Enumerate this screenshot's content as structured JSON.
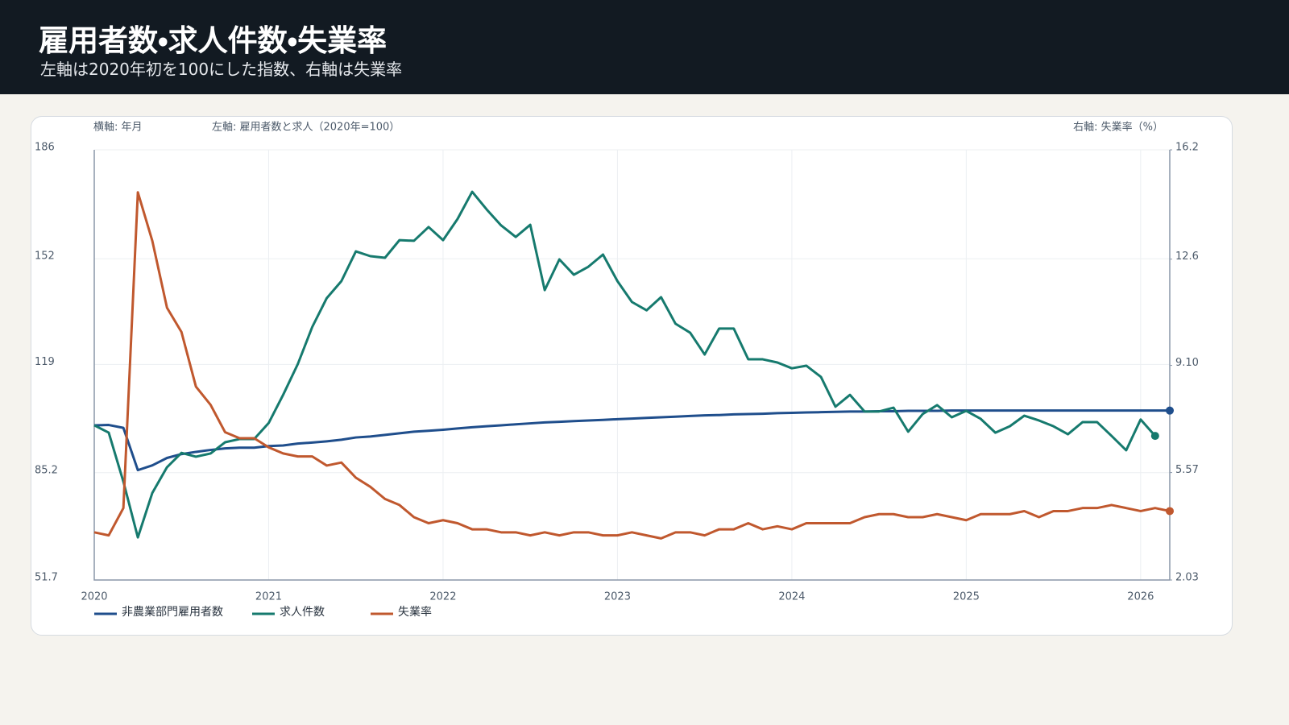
{
  "header": {
    "title": "雇用者数・求人件数・失業率",
    "subtitle": "左軸は2020年初を100にした指数、右軸は失業率"
  },
  "chart_data": {
    "type": "line",
    "x_axis_label": "横軸: 年月",
    "y_axis_label": "左軸: 雇用者数と求人（2020年=100）",
    "y2_axis_label": "右軸: 失業率（%）",
    "x": [
      2020,
      2020.083,
      2020.167,
      2020.25,
      2020.333,
      2020.417,
      2020.5,
      2020.583,
      2020.667,
      2020.75,
      2020.833,
      2020.917,
      2021,
      2021.083,
      2021.167,
      2021.25,
      2021.333,
      2021.417,
      2021.5,
      2021.583,
      2021.667,
      2021.75,
      2021.833,
      2021.917,
      2022,
      2022.083,
      2022.167,
      2022.25,
      2022.333,
      2022.417,
      2022.5,
      2022.583,
      2022.667,
      2022.75,
      2022.833,
      2022.917,
      2023,
      2023.083,
      2023.167,
      2023.25,
      2023.333,
      2023.417,
      2023.5,
      2023.583,
      2023.667,
      2023.75,
      2023.833,
      2023.917,
      2024,
      2024.083,
      2024.167,
      2024.25,
      2024.333,
      2024.417,
      2024.5,
      2024.583,
      2024.667,
      2024.75,
      2024.833,
      2024.917,
      2025,
      2025.083,
      2025.167,
      2025.25,
      2025.333,
      2025.417,
      2025.5,
      2025.583,
      2025.667,
      2025.75,
      2025.833,
      2025.917,
      2026,
      2026.083,
      2026.167
    ],
    "xlim": [
      2020,
      2026.167
    ],
    "xticks": [
      2020,
      2021,
      2022,
      2023,
      2024,
      2025,
      2026
    ],
    "ylim": [
      51.7,
      186
    ],
    "yticks": [
      51.7,
      85.2,
      119,
      152,
      186
    ],
    "y2lim": [
      2.03,
      16.2
    ],
    "y2ticks": [
      2.03,
      5.57,
      {
        "value": 9.1,
        "label": "9.10"
      },
      12.6,
      16.2
    ],
    "grid": true,
    "legend": "bottom-left",
    "series": [
      {
        "name": "非農業部門雇用者数",
        "color": "#1f4e8c",
        "values": [
          100,
          100.1,
          99.2,
          86,
          87.5,
          89.8,
          91,
          91.7,
          92.3,
          92.8,
          93,
          93,
          93.5,
          93.7,
          94.3,
          94.6,
          95,
          95.5,
          96.2,
          96.5,
          97,
          97.5,
          98,
          98.3,
          98.6,
          99,
          99.4,
          99.7,
          100,
          100.3,
          100.6,
          100.9,
          101.1,
          101.3,
          101.5,
          101.7,
          101.9,
          102.1,
          102.3,
          102.5,
          102.7,
          102.9,
          103.1,
          103.2,
          103.4,
          103.5,
          103.6,
          103.8,
          103.9,
          104,
          104.1,
          104.2,
          104.3,
          104.3,
          104.4,
          104.4,
          104.5,
          104.5,
          104.5,
          104.6,
          104.6,
          104.6,
          104.6,
          104.6,
          104.6,
          104.6,
          104.6,
          104.6,
          104.6,
          104.6,
          104.6,
          104.6,
          104.6,
          104.6,
          104.6
        ]
      },
      {
        "name": "求人件数",
        "color": "#167a6e",
        "values": [
          100,
          97.7,
          82.4,
          65,
          78.9,
          86.9,
          91.4,
          90.2,
          91.2,
          94.7,
          95.7,
          95.7,
          100.7,
          109.5,
          119.1,
          130.7,
          139.7,
          145,
          154.3,
          152.8,
          152.3,
          157.8,
          157.6,
          161.9,
          157.8,
          164.4,
          172.9,
          167.4,
          162.4,
          158.8,
          162.6,
          142.2,
          151.8,
          147,
          149.5,
          153.3,
          145,
          138.5,
          135.9,
          140,
          131.7,
          128.9,
          122.1,
          130.2,
          130.2,
          120.6,
          120.6,
          119.6,
          117.8,
          118.6,
          115.1,
          105.8,
          109.5,
          104.3,
          104.3,
          105.5,
          98,
          103.5,
          106.3,
          102.5,
          104.5,
          102,
          97.7,
          99.7,
          103,
          101.5,
          99.7,
          97.2,
          101,
          101,
          96.7,
          92.2,
          101.8,
          96.7,
          null
        ]
      },
      {
        "name": "失業率",
        "color": "#c0582e",
        "axis": "y2",
        "values": [
          3.6,
          3.5,
          4.4,
          14.8,
          13.2,
          11,
          10.2,
          8.4,
          7.8,
          6.9,
          6.7,
          6.7,
          6.4,
          6.2,
          6.1,
          6.1,
          5.8,
          5.9,
          5.4,
          5.1,
          4.7,
          4.5,
          4.1,
          3.9,
          4,
          3.9,
          3.7,
          3.7,
          3.6,
          3.6,
          3.5,
          3.6,
          3.5,
          3.6,
          3.6,
          3.5,
          3.5,
          3.6,
          3.5,
          3.4,
          3.6,
          3.6,
          3.5,
          3.7,
          3.7,
          3.9,
          3.7,
          3.8,
          3.7,
          3.9,
          3.9,
          3.9,
          3.9,
          4.1,
          4.2,
          4.2,
          4.1,
          4.1,
          4.2,
          4.1,
          4,
          4.2,
          4.2,
          4.2,
          4.3,
          4.1,
          4.3,
          4.3,
          4.4,
          4.4,
          4.5,
          4.4,
          4.3,
          4.4,
          4.3
        ]
      }
    ]
  }
}
